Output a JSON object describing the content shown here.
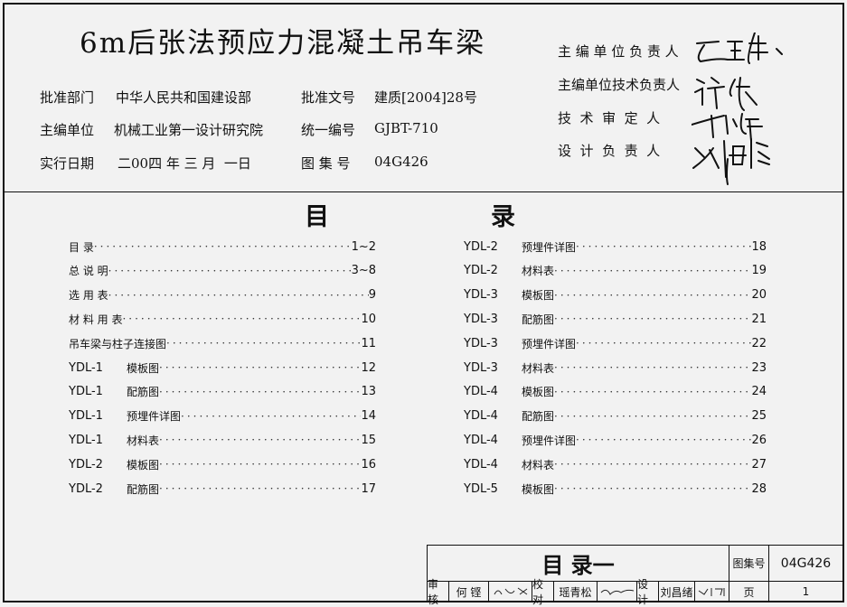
{
  "header": {
    "title": "6m后张法预应力混凝土吊车梁",
    "meta": [
      {
        "label": "批准部门",
        "value": "中华人民共和国建设部",
        "label2": "批准文号",
        "value2": "建质[2004]28号"
      },
      {
        "label": "主编单位",
        "value": "机械工业第一设计研究院",
        "label2": "统一编号",
        "value2": "GJBT-710"
      },
      {
        "label": "实行日期",
        "value": "二00四 年 三 月  一日",
        "label2": "图 集 号",
        "value2": "04G426"
      }
    ],
    "responsible": [
      "主 编 单 位 负 责 人",
      "主编单位技术负责人",
      "技  术  审  定  人",
      "设  计  负  责  人"
    ]
  },
  "toc": {
    "heading_left": "目",
    "heading_right": "录",
    "left": [
      {
        "code": "",
        "label": "目    录",
        "page": "1~2"
      },
      {
        "code": "",
        "label": "总 说 明",
        "page": "3~8"
      },
      {
        "code": "",
        "label": "选 用 表",
        "page": "9"
      },
      {
        "code": "",
        "label": "材 料 用 表",
        "page": "10"
      },
      {
        "code": "",
        "label": "吊车梁与柱子连接图",
        "page": "11"
      },
      {
        "code": "YDL-1",
        "label": "模板图",
        "page": "12"
      },
      {
        "code": "YDL-1",
        "label": "配筋图",
        "page": "13"
      },
      {
        "code": "YDL-1",
        "label": "预埋件详图",
        "page": "14"
      },
      {
        "code": "YDL-1",
        "label": "材料表",
        "page": "15"
      },
      {
        "code": "YDL-2",
        "label": "模板图",
        "page": "16"
      },
      {
        "code": "YDL-2",
        "label": "配筋图",
        "page": "17"
      }
    ],
    "right": [
      {
        "code": "YDL-2",
        "label": "预埋件详图",
        "page": "18"
      },
      {
        "code": "YDL-2",
        "label": "材料表",
        "page": "19"
      },
      {
        "code": "YDL-3",
        "label": "模板图",
        "page": "20"
      },
      {
        "code": "YDL-3",
        "label": "配筋图",
        "page": "21"
      },
      {
        "code": "YDL-3",
        "label": "预埋件详图",
        "page": "22"
      },
      {
        "code": "YDL-3",
        "label": "材料表",
        "page": "23"
      },
      {
        "code": "YDL-4",
        "label": "模板图",
        "page": "24"
      },
      {
        "code": "YDL-4",
        "label": "配筋图",
        "page": "25"
      },
      {
        "code": "YDL-4",
        "label": "预埋件详图",
        "page": "26"
      },
      {
        "code": "YDL-4",
        "label": "材料表",
        "page": "27"
      },
      {
        "code": "YDL-5",
        "label": "模板图",
        "page": "28"
      }
    ]
  },
  "title_block": {
    "sheet_title": "目 录一",
    "atlas_label": "图集号",
    "atlas_value": "04G426",
    "review_label": "审核",
    "review_name": "何 铿",
    "check_label": "校对",
    "check_name": "瑶青松",
    "design_label": "设计",
    "design_name": "刘昌绪",
    "page_label": "页",
    "page_value": "1"
  }
}
